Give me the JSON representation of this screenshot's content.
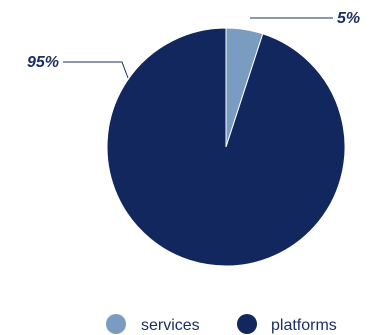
{
  "chart_data": {
    "type": "pie",
    "slices": [
      {
        "label": "services",
        "value": 5,
        "display": "5%",
        "color": "#7a9cc1"
      },
      {
        "label": "platforms",
        "value": 95,
        "display": "95%",
        "color": "#12275e"
      }
    ],
    "start_angle_deg": 0,
    "direction": "clockwise",
    "legend_placement": "bottom",
    "label_color": "#1c2f63"
  }
}
